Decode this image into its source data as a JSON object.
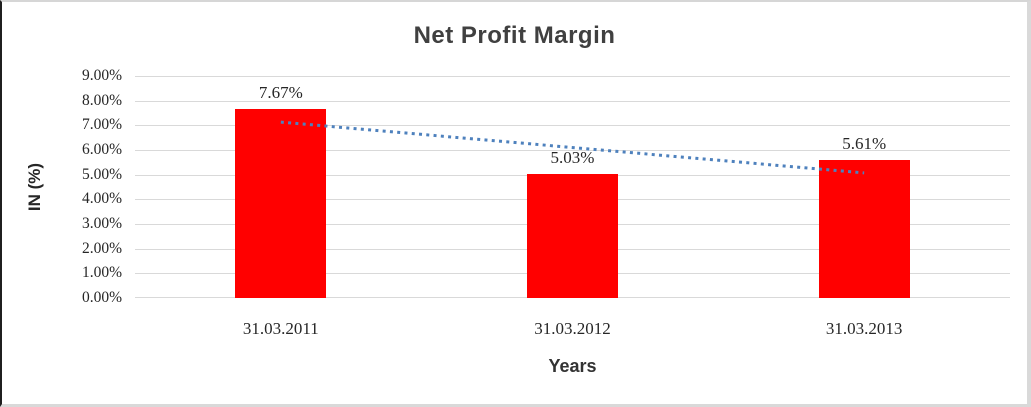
{
  "chart_data": {
    "type": "bar",
    "title": "Net Profit Margin",
    "xlabel": "Years",
    "ylabel": "IN (%)",
    "categories": [
      "31.03.2011",
      "31.03.2012",
      "31.03.2013"
    ],
    "values": [
      7.67,
      5.03,
      5.61
    ],
    "data_labels": [
      "7.67%",
      "5.03%",
      "5.61%"
    ],
    "ylim": [
      0,
      9
    ],
    "ytick_labels_top_down": [
      "9.00%",
      "8.00%",
      "7.00%",
      "6.00%",
      "5.00%",
      "4.00%",
      "3.00%",
      "2.00%",
      "1.00%",
      "0.00%"
    ],
    "grid": true,
    "legend": "none",
    "bar_color": "#FF0000",
    "trendline": {
      "type": "linear",
      "style": "dotted",
      "color": "#4E81BD",
      "start_value": 7.13,
      "end_value": 5.07
    }
  }
}
